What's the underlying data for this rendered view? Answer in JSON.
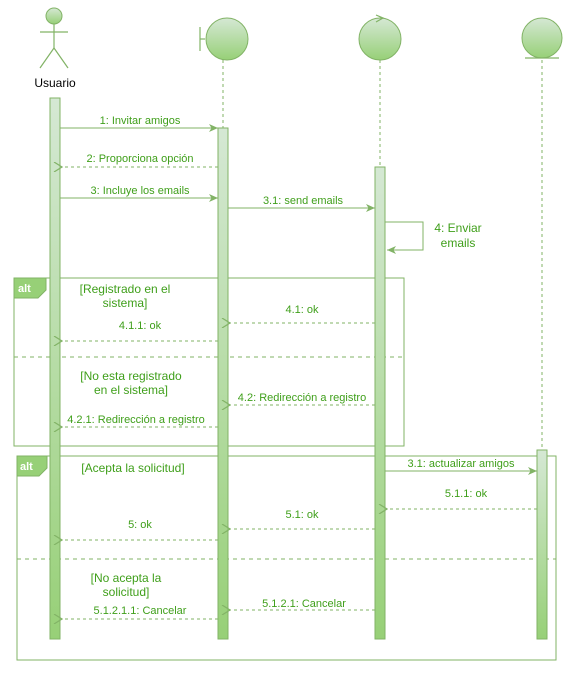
{
  "colors": {
    "stroke": "#82b366",
    "fill_top": "#d5e8d4",
    "fill_bottom": "#97d077",
    "text": "#3f9f1a",
    "tag_fill": "#97d077"
  },
  "participants": {
    "actor": {
      "label": "Usuario",
      "icon": "actor-stick-figure-icon"
    },
    "boundary": {
      "icon": "boundary-icon"
    },
    "control": {
      "icon": "control-icon"
    },
    "entity": {
      "icon": "entity-icon"
    }
  },
  "messages": {
    "m1": "1: Invitar amigos",
    "m2": "2: Proporciona opción",
    "m3": "3: Incluye los emails",
    "m31": "3.1: send emails",
    "m4_line1": "4: Enviar",
    "m4_line2": "emails",
    "m41": "4.1: ok",
    "m411": "4.1.1: ok",
    "m42": "4.2: Redirección a registro",
    "m421": "4.2.1: Redirección a registro",
    "m31b": "3.1: actualizar amigos",
    "m511": "5.1.1: ok",
    "m51": "5.1: ok",
    "m5": "5: ok",
    "m5121": "5.1.2.1: Cancelar",
    "m51211": "5.1.2.1.1: Cancelar"
  },
  "fragments": {
    "alt1": {
      "tag": "alt",
      "guard1_line1": "[Registrado en el",
      "guard1_line2": "sistema]",
      "guard2_line1": "[No esta registrado",
      "guard2_line2": "en el sistema]"
    },
    "alt2": {
      "tag": "alt",
      "guard1": "[Acepta la solicitud]",
      "guard2_line1": "[No acepta la",
      "guard2_line2": "solicitud]"
    }
  }
}
